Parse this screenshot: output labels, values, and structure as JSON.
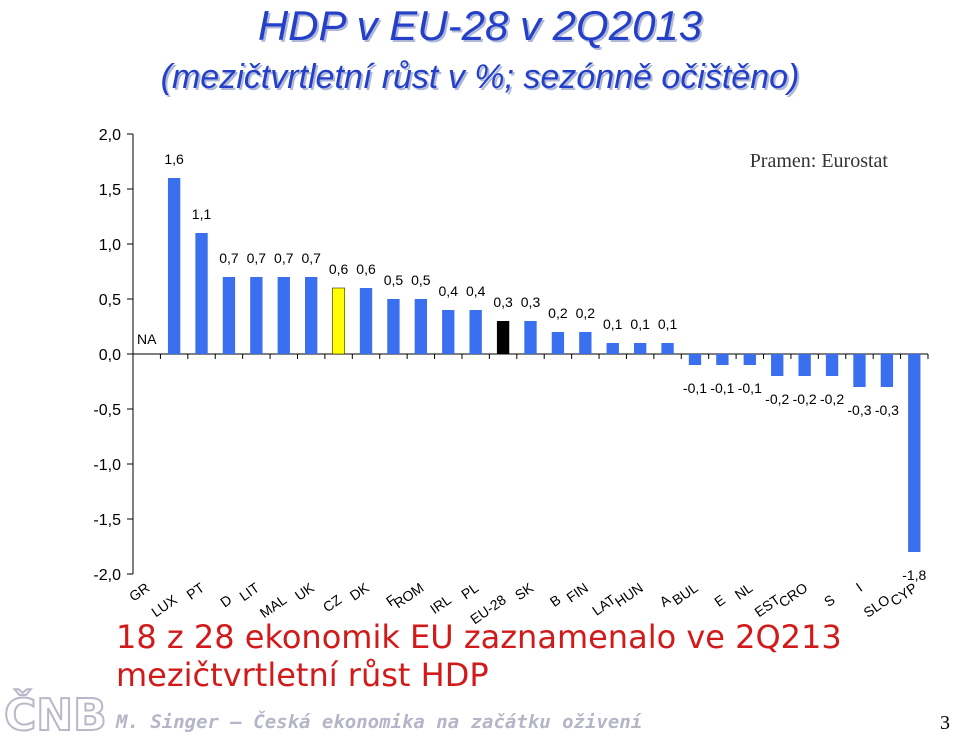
{
  "slide": {
    "title": "HDP v EU-28 v 2Q2013",
    "subtitle": "(mezičtvrtletní růst v %; sezónně očištěno)",
    "conclusion": "18 z 28 ekonomik EU zaznamenalo ve 2Q213 mezičtvrtletní růst HDP",
    "credit": "M. Singer – Česká ekonomika na začátku oživení",
    "page_number": "3",
    "logo_text": "ČNB"
  },
  "chart_data": {
    "type": "bar",
    "source_note": "Pramen: Eurostat",
    "categories": [
      "GR",
      "LUX",
      "PT",
      "D",
      "LIT",
      "MAL",
      "UK",
      "CZ",
      "DK",
      "F",
      "ROM",
      "IRL",
      "PL",
      "EU-28",
      "SK",
      "B",
      "FIN",
      "LAT",
      "HUN",
      "A",
      "BUL",
      "E",
      "NL",
      "EST",
      "CRO",
      "S",
      "I",
      "SLO",
      "CYP"
    ],
    "values": [
      null,
      1.6,
      1.1,
      0.7,
      0.7,
      0.7,
      0.7,
      0.6,
      0.6,
      0.5,
      0.5,
      0.4,
      0.4,
      0.3,
      0.3,
      0.2,
      0.2,
      0.1,
      0.1,
      0.1,
      -0.1,
      -0.1,
      -0.1,
      -0.2,
      -0.2,
      -0.2,
      -0.3,
      -0.3,
      -1.8
    ],
    "value_labels": [
      "NA",
      "1,6",
      "1,1",
      "0,7",
      "0,7",
      "0,7",
      "0,7",
      "0,6",
      "0,6",
      "0,5",
      "0,5",
      "0,4",
      "0,4",
      "0,3",
      "0,3",
      "0,2",
      "0,2",
      "0,1",
      "0,1",
      "0,1",
      "-0,1",
      "-0,1",
      "-0,1",
      "-0,2",
      "-0,2",
      "-0,2",
      "-0,3",
      "-0,3",
      "-1,8"
    ],
    "highlight": {
      "CZ": "#ffff00",
      "EU-28": "#000000"
    },
    "bar_color": "#3a6ff0",
    "ylim": [
      -2.0,
      2.0
    ],
    "yticks": [
      "2,0",
      "1,5",
      "1,0",
      "0,5",
      "0,0",
      "-0,5",
      "-1,0",
      "-1,5",
      "-2,0"
    ],
    "ytick_values": [
      2.0,
      1.5,
      1.0,
      0.5,
      0.0,
      -0.5,
      -1.0,
      -1.5,
      -2.0
    ],
    "grid": false,
    "legend": "none"
  }
}
